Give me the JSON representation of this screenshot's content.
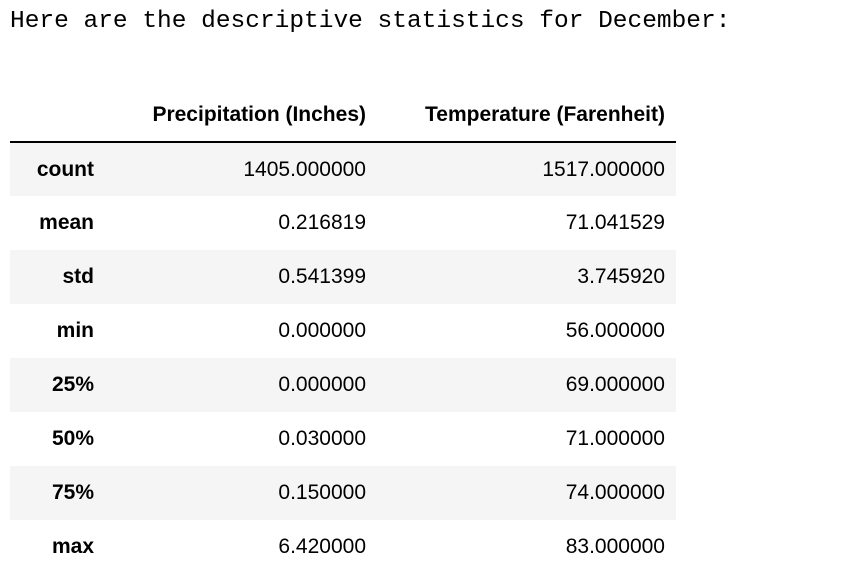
{
  "output": {
    "text": "Here are the descriptive statistics for December:"
  },
  "table": {
    "columns": [
      "Precipitation (Inches)",
      "Temperature (Farenheit)"
    ],
    "rows": [
      {
        "label": "count",
        "values": [
          "1405.000000",
          "1517.000000"
        ]
      },
      {
        "label": "mean",
        "values": [
          "0.216819",
          "71.041529"
        ]
      },
      {
        "label": "std",
        "values": [
          "0.541399",
          "3.745920"
        ]
      },
      {
        "label": "min",
        "values": [
          "0.000000",
          "56.000000"
        ]
      },
      {
        "label": "25%",
        "values": [
          "0.000000",
          "69.000000"
        ]
      },
      {
        "label": "50%",
        "values": [
          "0.030000",
          "71.000000"
        ]
      },
      {
        "label": "75%",
        "values": [
          "0.150000",
          "74.000000"
        ]
      },
      {
        "label": "max",
        "values": [
          "6.420000",
          "83.000000"
        ]
      }
    ]
  },
  "colors": {
    "striped_row_background": "#f5f5f5",
    "text": "#000000",
    "header_rule": "#000000"
  }
}
